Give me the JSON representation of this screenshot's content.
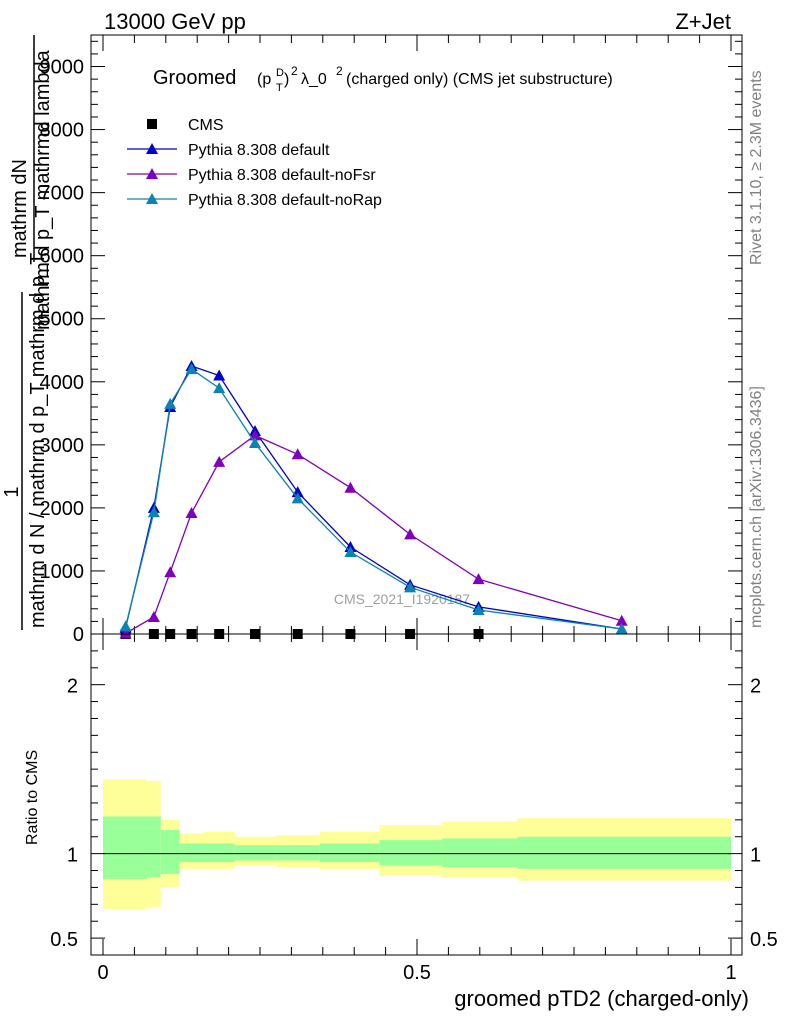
{
  "header": {
    "left": "13000 GeV pp",
    "right": "Z+Jet"
  },
  "side": {
    "rivet": "Rivet 3.1.10, ≥ 2.3M events",
    "mcplots": "mcplots.cern.ch [arXiv:1306.3436]"
  },
  "main": {
    "title_main": "Groomed",
    "title_p": "(p",
    "title_sup_d": "D",
    "title_sub_t": "T",
    "title_close": ")",
    "title_sup2": "2",
    "title_lambda": "λ_0",
    "title_sup2b": "2",
    "title_rest": " (charged only) (CMS jet substructure)",
    "ylabel_top1": "mathrm dN",
    "ylabel_top2": "mathrm d p_T mathrmd lambda",
    "ylabel_one": "1",
    "ylabel_bottom": "mathrm d N / mathrm d p_T mathrm d p_T",
    "watermark": "CMS_2021_I1920187",
    "legend": [
      {
        "label": "CMS",
        "color": "#000000",
        "marker": "square"
      },
      {
        "label": "Pythia 8.308 default",
        "color": "#0000cc",
        "marker": "triangle"
      },
      {
        "label": "Pythia 8.308 default-noFsr",
        "color": "#7f00bf",
        "marker": "triangle"
      },
      {
        "label": "Pythia 8.308 default-noRap",
        "color": "#0a84b0",
        "marker": "triangle"
      }
    ]
  },
  "ratio": {
    "ylabel": "Ratio to CMS",
    "xlabel": "groomed pTD2 (charged-only)"
  },
  "chart_data": [
    {
      "type": "line",
      "xlabel": "groomed pTD2 (charged-only)",
      "xlim": [
        0,
        1
      ],
      "ylim": [
        0,
        9500
      ],
      "yticks": [
        0,
        1000,
        2000,
        3000,
        4000,
        5000,
        6000,
        7000,
        8000,
        9000
      ],
      "ytick_labels": [
        "0",
        "1000",
        "2000",
        "3000",
        "4000",
        "5000",
        "6000",
        "7000",
        "8000",
        "9000"
      ],
      "series": [
        {
          "name": "CMS",
          "x": [
            0.036,
            0.081,
            0.107,
            0.141,
            0.185,
            0.242,
            0.31,
            0.394,
            0.489,
            0.598
          ],
          "y": [
            0,
            0,
            0,
            0,
            0,
            0,
            0,
            0,
            0,
            0
          ]
        },
        {
          "name": "Pythia 8.308 default",
          "x": [
            0.036,
            0.081,
            0.107,
            0.141,
            0.185,
            0.242,
            0.31,
            0.394,
            0.489,
            0.598,
            0.826
          ],
          "y": [
            100,
            2000,
            3600,
            4250,
            4100,
            3220,
            2250,
            1380,
            780,
            430,
            80
          ]
        },
        {
          "name": "Pythia 8.308 default-noFsr",
          "x": [
            0.036,
            0.081,
            0.107,
            0.141,
            0.185,
            0.242,
            0.31,
            0.394,
            0.489,
            0.598,
            0.826
          ],
          "y": [
            10,
            270,
            980,
            1920,
            2730,
            3150,
            2850,
            2320,
            1580,
            870,
            210
          ]
        },
        {
          "name": "Pythia 8.308 default-noRap",
          "x": [
            0.036,
            0.081,
            0.107,
            0.141,
            0.185,
            0.242,
            0.31,
            0.394,
            0.489,
            0.598,
            0.826
          ],
          "y": [
            120,
            1930,
            3650,
            4200,
            3900,
            3030,
            2150,
            1300,
            740,
            380,
            80
          ]
        }
      ]
    },
    {
      "type": "area",
      "xlabel": "groomed pTD2 (charged-only)",
      "ylabel": "Ratio to CMS",
      "xlim": [
        0,
        1
      ],
      "ylim": [
        0.4,
        2.3
      ],
      "xticks": [
        0,
        0.5,
        1
      ],
      "xtick_labels": [
        "0",
        "0.5",
        "1"
      ],
      "yticks": [
        0.5,
        1,
        2
      ],
      "ytick_labels": [
        "0.5",
        "1",
        "2"
      ],
      "bands": [
        {
          "x0": 0.0,
          "x1": 0.07,
          "green": [
            0.85,
            1.22
          ],
          "yellow": [
            0.67,
            1.44
          ]
        },
        {
          "x0": 0.07,
          "x1": 0.092,
          "green": [
            0.86,
            1.22
          ],
          "yellow": [
            0.68,
            1.43
          ]
        },
        {
          "x0": 0.092,
          "x1": 0.122,
          "green": [
            0.88,
            1.14
          ],
          "yellow": [
            0.8,
            1.2
          ]
        },
        {
          "x0": 0.122,
          "x1": 0.16,
          "green": [
            0.95,
            1.06
          ],
          "yellow": [
            0.91,
            1.12
          ]
        },
        {
          "x0": 0.16,
          "x1": 0.21,
          "green": [
            0.95,
            1.06
          ],
          "yellow": [
            0.91,
            1.13
          ]
        },
        {
          "x0": 0.21,
          "x1": 0.275,
          "green": [
            0.96,
            1.05
          ],
          "yellow": [
            0.93,
            1.1
          ]
        },
        {
          "x0": 0.275,
          "x1": 0.345,
          "green": [
            0.96,
            1.05
          ],
          "yellow": [
            0.92,
            1.11
          ]
        },
        {
          "x0": 0.345,
          "x1": 0.44,
          "green": [
            0.95,
            1.06
          ],
          "yellow": [
            0.91,
            1.13
          ]
        },
        {
          "x0": 0.44,
          "x1": 0.54,
          "green": [
            0.93,
            1.08
          ],
          "yellow": [
            0.87,
            1.17
          ]
        },
        {
          "x0": 0.54,
          "x1": 0.66,
          "green": [
            0.92,
            1.09
          ],
          "yellow": [
            0.86,
            1.19
          ]
        },
        {
          "x0": 0.66,
          "x1": 1.0,
          "green": [
            0.91,
            1.1
          ],
          "yellow": [
            0.84,
            1.21
          ]
        }
      ],
      "reference_line": 1
    }
  ]
}
